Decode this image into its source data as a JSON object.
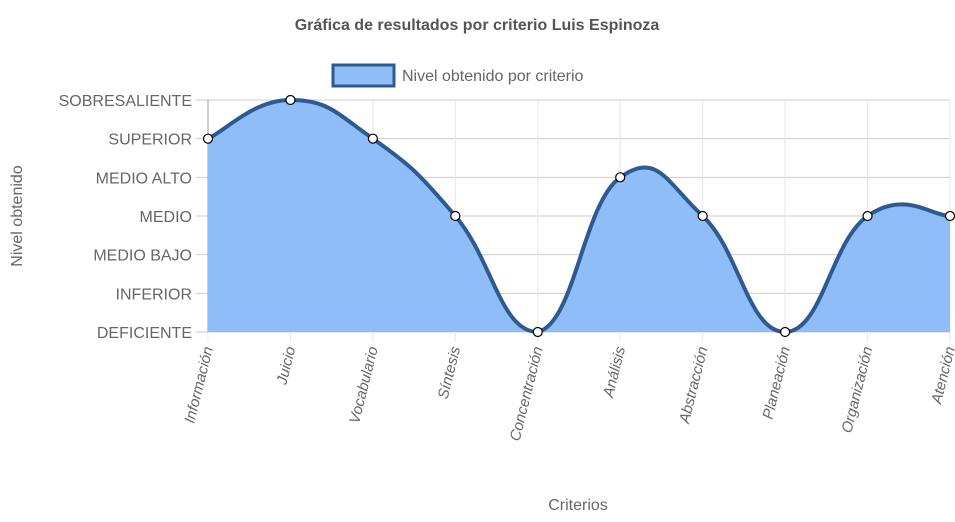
{
  "chart_data": {
    "type": "area",
    "title": "Gráfica de resultados por criterio Luis Espinoza",
    "xlabel": "Criterios",
    "ylabel": "Nivel obtenido",
    "categories": [
      "Información",
      "Juicio",
      "Vocabulario",
      "Síntesis",
      "Concentración",
      "Análisis",
      "Abstracción",
      "Planeación",
      "Organización",
      "Atención"
    ],
    "y_levels": [
      "DEFICIENTE",
      "INFERIOR",
      "MEDIO BAJO",
      "MEDIO",
      "MEDIO ALTO",
      "SUPERIOR",
      "SOBRESALIENTE"
    ],
    "series": [
      {
        "name": "Nivel obtenido por criterio",
        "values": [
          5,
          6,
          5,
          3,
          0,
          4,
          3,
          0,
          3,
          3
        ]
      }
    ],
    "ylim": [
      0,
      6
    ],
    "grid": true,
    "legend_position": "top-center",
    "colors": {
      "fill": "#8fbdf7",
      "line": "#2f5a8f",
      "grid": "#cccccc",
      "point_fill": "#ffffff"
    }
  }
}
